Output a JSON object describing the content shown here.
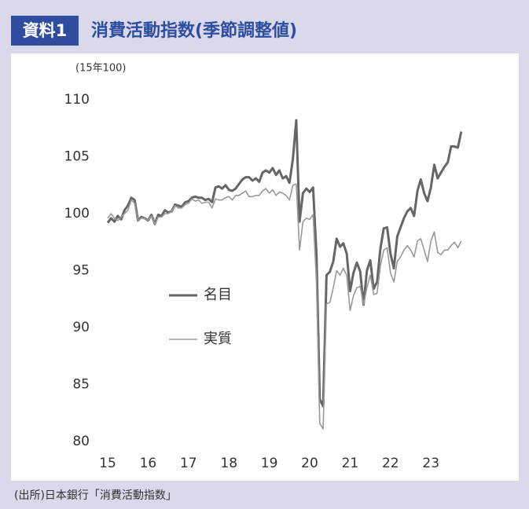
{
  "chart_data": {
    "type": "line",
    "figure_label": "資料1",
    "title": "消費活動指数(季節調整値)",
    "y_label": "(15年100)",
    "source": "(出所)日本銀行「消費活動指数」",
    "legend": "center-left",
    "grid": false,
    "ylim": [
      80,
      110
    ],
    "yticks": [
      80,
      85,
      90,
      95,
      100,
      105,
      110
    ],
    "categories": [
      "15",
      null,
      null,
      null,
      null,
      null,
      null,
      null,
      null,
      null,
      null,
      null,
      "16",
      null,
      null,
      null,
      null,
      null,
      null,
      null,
      null,
      null,
      null,
      null,
      "17",
      null,
      null,
      null,
      null,
      null,
      null,
      null,
      null,
      null,
      null,
      null,
      "18",
      null,
      null,
      null,
      null,
      null,
      null,
      null,
      null,
      null,
      null,
      null,
      "19",
      null,
      null,
      null,
      null,
      null,
      null,
      null,
      null,
      null,
      null,
      null,
      "20",
      null,
      null,
      null,
      null,
      null,
      null,
      null,
      null,
      null,
      null,
      null,
      "21",
      null,
      null,
      null,
      null,
      null,
      null,
      null,
      null,
      null,
      null,
      null,
      "22",
      null,
      null,
      null,
      null,
      null,
      null,
      null,
      null,
      null,
      null,
      null,
      "23",
      null,
      null,
      null,
      null,
      null,
      null,
      null,
      null,
      null
    ],
    "series": [
      {
        "name": "名目",
        "color": "#666666",
        "width": 3,
        "values": [
          99.2,
          99.6,
          99.3,
          99.8,
          99.5,
          100.3,
          100.7,
          101.4,
          101.2,
          99.4,
          99.7,
          99.6,
          99.4,
          99.9,
          99.1,
          99.9,
          99.8,
          100.3,
          100.1,
          100.2,
          100.8,
          100.7,
          100.6,
          101.0,
          101.1,
          101.4,
          101.5,
          101.4,
          101.4,
          101.2,
          101.3,
          101.0,
          102.3,
          102.4,
          102.2,
          102.5,
          102.1,
          102.0,
          102.2,
          102.6,
          103.0,
          103.2,
          103.2,
          102.9,
          103.1,
          102.8,
          103.6,
          103.8,
          103.6,
          104.0,
          103.4,
          103.8,
          103.1,
          103.3,
          102.7,
          104.8,
          108.2,
          99.3,
          101.8,
          102.2,
          101.9,
          102.3,
          96.5,
          83.7,
          83.1,
          94.6,
          94.9,
          95.8,
          97.8,
          97.1,
          97.4,
          96.5,
          93.2,
          94.8,
          95.7,
          94.9,
          92.0,
          95.0,
          95.9,
          93.4,
          94.0,
          96.9,
          98.7,
          98.8,
          96.5,
          95.2,
          98.0,
          98.8,
          99.6,
          100.2,
          100.5,
          99.8,
          102.0,
          103.0,
          101.8,
          101.1,
          102.3,
          104.3,
          103.1,
          103.6,
          104.1,
          104.5,
          105.9,
          105.9,
          105.8,
          107.2
        ]
      },
      {
        "name": "実質",
        "color": "#999999",
        "width": 1.6,
        "values": [
          99.6,
          100.0,
          99.6,
          99.4,
          99.7,
          100.0,
          100.3,
          101.2,
          100.9,
          99.4,
          99.6,
          99.6,
          99.4,
          99.8,
          99.1,
          99.7,
          99.7,
          100.0,
          100.0,
          100.2,
          100.7,
          100.5,
          100.5,
          100.8,
          100.9,
          101.3,
          101.1,
          101.2,
          100.9,
          101.0,
          101.0,
          100.5,
          101.3,
          101.2,
          101.2,
          101.4,
          101.5,
          101.2,
          101.6,
          101.6,
          101.8,
          102.0,
          101.5,
          101.5,
          101.6,
          101.6,
          102.0,
          102.2,
          101.8,
          102.1,
          101.6,
          101.9,
          101.8,
          101.6,
          101.2,
          102.5,
          102.6,
          96.8,
          99.3,
          99.6,
          99.5,
          99.9,
          94.0,
          81.6,
          81.1,
          92.1,
          92.2,
          93.5,
          95.0,
          94.6,
          95.2,
          94.6,
          91.5,
          92.8,
          93.5,
          93.6,
          92.0,
          93.5,
          94.6,
          92.9,
          93.0,
          95.4,
          96.8,
          97.0,
          94.8,
          94.0,
          95.8,
          96.2,
          96.8,
          97.2,
          96.8,
          96.2,
          97.6,
          97.8,
          96.8,
          95.8,
          97.6,
          98.4,
          96.6,
          96.4,
          96.8,
          96.8,
          97.2,
          97.5,
          97.0,
          97.6
        ]
      }
    ]
  }
}
